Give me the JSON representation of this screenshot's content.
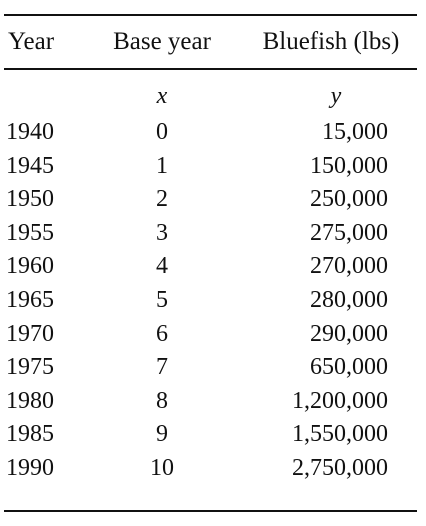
{
  "table": {
    "headers": {
      "year": "Year",
      "base_year": "Base year",
      "bluefish": "Bluefish (lbs)"
    },
    "variables": {
      "x": "x",
      "y": "y"
    },
    "rows": [
      {
        "year": "1940",
        "x": "0",
        "y": "15,000"
      },
      {
        "year": "1945",
        "x": "1",
        "y": "150,000"
      },
      {
        "year": "1950",
        "x": "2",
        "y": "250,000"
      },
      {
        "year": "1955",
        "x": "3",
        "y": "275,000"
      },
      {
        "year": "1960",
        "x": "4",
        "y": "270,000"
      },
      {
        "year": "1965",
        "x": "5",
        "y": "280,000"
      },
      {
        "year": "1970",
        "x": "6",
        "y": "290,000"
      },
      {
        "year": "1975",
        "x": "7",
        "y": "650,000"
      },
      {
        "year": "1980",
        "x": "8",
        "y": "1,200,000"
      },
      {
        "year": "1985",
        "x": "9",
        "y": "1,550,000"
      },
      {
        "year": "1990",
        "x": "10",
        "y": "2,750,000"
      }
    ]
  }
}
